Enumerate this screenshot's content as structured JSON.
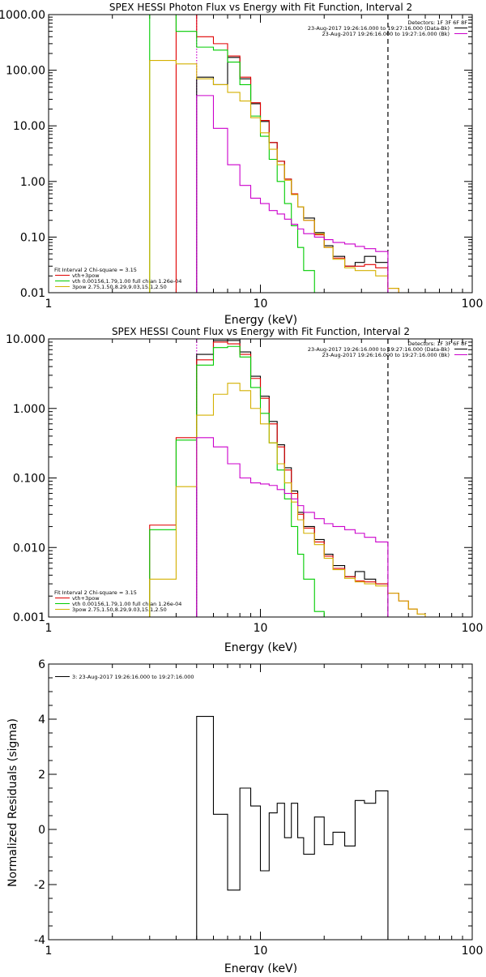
{
  "chart_data": [
    {
      "type": "line",
      "title": "SPEX HESSI Photon Flux vs Energy with Fit Function, Interval 2",
      "xlabel": "Energy (keV)",
      "ylabel": "",
      "xscale": "log",
      "yscale": "log",
      "xlim": [
        1,
        100
      ],
      "ylim": [
        0.01,
        1000
      ],
      "x_ticks": [
        "1",
        "10",
        "100"
      ],
      "y_ticks": [
        "0.01",
        "0.10",
        "1.00",
        "10.00",
        "100.00",
        "1000.00"
      ],
      "vlines": [
        {
          "x": 5.0,
          "style": "dotted",
          "color": "#cc00cc"
        },
        {
          "x": 40,
          "style": "dashed",
          "color": "#000000"
        }
      ],
      "legend_top_right": {
        "header": "Detectors: 1F 3F 6F 8F",
        "lines": [
          {
            "text": "23-Aug-2017 19:26:16.000 to 19:27:16.000 (Data-Bk)",
            "color": "#000000"
          },
          {
            "text": "23-Aug-2017 19:26:16.000 to 19:27:16.000 (Bk)",
            "color": "#cc00cc"
          }
        ]
      },
      "legend_bottom_left": {
        "header": "Fit Interval 2   Chi-square = 3.15",
        "lines": [
          {
            "text": "vth+3pow",
            "color": "#e00000"
          },
          {
            "text": "vth 0.00156,1.79,1.00  full chian 1.26e-04",
            "color": "#00cc00"
          },
          {
            "text": "3pow 2.75,1.50,8.29,9.03,15.1,2.50",
            "color": "#d4b000"
          }
        ]
      },
      "edges": [
        3,
        4,
        5,
        6,
        7,
        8,
        9,
        10,
        11,
        12,
        13,
        14,
        15,
        16,
        18,
        20,
        22,
        25,
        28,
        31,
        35,
        40,
        45,
        50
      ],
      "series": [
        {
          "color": "#000000",
          "values": [
            null,
            null,
            75,
            55,
            170,
            70,
            25,
            12,
            5.0,
            2.3,
            1.1,
            0.6,
            0.35,
            0.22,
            0.12,
            0.07,
            0.045,
            0.03,
            0.035,
            0.045,
            0.035,
            null,
            null
          ]
        },
        {
          "color": "#e00000",
          "values": [
            null,
            1000,
            400,
            300,
            180,
            75,
            26,
            12.5,
            5.0,
            2.3,
            1.1,
            0.6,
            0.35,
            0.2,
            0.11,
            0.065,
            0.042,
            0.03,
            0.03,
            0.032,
            0.028,
            0.012,
            null
          ]
        },
        {
          "color": "#00cc00",
          "values": [
            1000,
            500,
            260,
            230,
            140,
            55,
            15,
            6.5,
            2.5,
            1.0,
            0.4,
            0.16,
            0.065,
            0.025,
            0.01,
            null,
            null,
            null,
            null,
            null,
            null,
            null,
            null
          ]
        },
        {
          "color": "#d4b000",
          "values": [
            150,
            130,
            70,
            55,
            40,
            28,
            14,
            7.5,
            3.8,
            2.0,
            1.05,
            0.58,
            0.35,
            0.2,
            0.115,
            0.065,
            0.04,
            0.028,
            0.025,
            0.025,
            0.02,
            0.012,
            null
          ]
        },
        {
          "color": "#cc00cc",
          "values": [
            null,
            null,
            35,
            9,
            2.0,
            0.85,
            0.5,
            0.4,
            0.3,
            0.26,
            0.21,
            0.17,
            0.14,
            0.115,
            0.1,
            0.09,
            0.08,
            0.075,
            0.068,
            0.062,
            0.055,
            null,
            null
          ]
        }
      ]
    },
    {
      "type": "line",
      "title": "SPEX HESSI Count Flux vs Energy with Fit Function, Interval 2",
      "xlabel": "Energy (keV)",
      "ylabel": "",
      "xscale": "log",
      "yscale": "log",
      "xlim": [
        1,
        100
      ],
      "ylim": [
        0.001,
        10
      ],
      "x_ticks": [
        "1",
        "10",
        "100"
      ],
      "y_ticks": [
        "0.001",
        "0.010",
        "0.100",
        "1.000",
        "10.000"
      ],
      "vlines": [
        {
          "x": 5.0,
          "style": "dotted",
          "color": "#cc00cc"
        },
        {
          "x": 40,
          "style": "dashed",
          "color": "#000000"
        }
      ],
      "legend_top_right": {
        "header": "Detectors: 1F 3F 6F 8F",
        "lines": [
          {
            "text": "23-Aug-2017 19:26:16.000 to 19:27:16.000 (Data-Bk)",
            "color": "#000000"
          },
          {
            "text": "23-Aug-2017 19:26:16.000 to 19:27:16.000 (Bk)",
            "color": "#cc00cc"
          }
        ]
      },
      "legend_bottom_left": {
        "header": "Fit Interval 2   Chi-square = 3.15",
        "lines": [
          {
            "text": "vth+3pow",
            "color": "#e00000"
          },
          {
            "text": "vth 0.00156,1.79,1.00  full chian 1.26e-04",
            "color": "#00cc00"
          },
          {
            "text": "3pow 2.75,1.50,8.29,9.03,15.1,2.50",
            "color": "#d4b000"
          }
        ]
      },
      "edges": [
        3,
        4,
        5,
        6,
        7,
        8,
        9,
        10,
        11,
        12,
        13,
        14,
        15,
        16,
        18,
        20,
        22,
        25,
        28,
        31,
        35,
        40,
        45,
        50,
        55,
        60
      ],
      "series": [
        {
          "color": "#000000",
          "values": [
            null,
            null,
            6.0,
            9.5,
            9.5,
            6.5,
            2.9,
            1.5,
            0.65,
            0.3,
            0.14,
            0.065,
            0.032,
            0.02,
            0.013,
            0.008,
            0.0055,
            0.0038,
            0.0045,
            0.0035,
            0.003,
            null,
            null,
            null,
            null
          ]
        },
        {
          "color": "#e00000",
          "values": [
            0.021,
            0.38,
            5.0,
            9.0,
            8.5,
            6.0,
            2.7,
            1.4,
            0.6,
            0.28,
            0.13,
            0.06,
            0.03,
            0.019,
            0.012,
            0.0075,
            0.005,
            0.0038,
            0.0033,
            0.0032,
            0.003,
            0.0022,
            0.0017,
            0.0013,
            0.0011
          ]
        },
        {
          "color": "#00cc00",
          "values": [
            0.018,
            0.35,
            4.2,
            7.5,
            7.8,
            5.5,
            2.0,
            0.85,
            0.32,
            0.13,
            0.05,
            0.02,
            0.008,
            0.0035,
            0.0012,
            null,
            null,
            null,
            null,
            null,
            null,
            null,
            null,
            null,
            null
          ]
        },
        {
          "color": "#d4b000",
          "values": [
            0.0035,
            0.075,
            0.8,
            1.6,
            2.3,
            1.8,
            1.0,
            0.6,
            0.32,
            0.16,
            0.085,
            0.045,
            0.025,
            0.016,
            0.011,
            0.007,
            0.0048,
            0.0036,
            0.0032,
            0.003,
            0.0028,
            0.0022,
            0.0017,
            0.0013,
            0.0011
          ]
        },
        {
          "color": "#cc00cc",
          "values": [
            null,
            null,
            0.38,
            0.28,
            0.16,
            0.1,
            0.085,
            0.082,
            0.078,
            0.068,
            0.06,
            0.05,
            0.04,
            0.032,
            0.026,
            0.022,
            0.02,
            0.018,
            0.016,
            0.014,
            0.012,
            null,
            null,
            null,
            null
          ]
        }
      ]
    },
    {
      "type": "line",
      "title": "",
      "xlabel": "Energy (keV)",
      "ylabel": "Normalized Residuals (sigma)",
      "xscale": "log",
      "yscale": "linear",
      "xlim": [
        1,
        100
      ],
      "ylim": [
        -4,
        6
      ],
      "x_ticks": [
        "1",
        "10",
        "100"
      ],
      "y_ticks": [
        "-4",
        "-2",
        "0",
        "2",
        "4",
        "6"
      ],
      "legend": [
        {
          "text": "3: 23-Aug-2017 19:26:16.000 to 19:27:16.000",
          "color": "#000000"
        }
      ],
      "edges": [
        5,
        6,
        7,
        8,
        9,
        10,
        11,
        12,
        13,
        14,
        15,
        16,
        18,
        20,
        22,
        25,
        28,
        31,
        35,
        40
      ],
      "series": [
        {
          "color": "#000000",
          "values": [
            4.1,
            0.55,
            -2.2,
            1.5,
            0.85,
            -1.5,
            0.6,
            0.95,
            -0.3,
            0.95,
            -0.3,
            -0.9,
            0.45,
            -0.55,
            -0.1,
            -0.6,
            1.05,
            0.95,
            1.4
          ]
        }
      ]
    }
  ]
}
